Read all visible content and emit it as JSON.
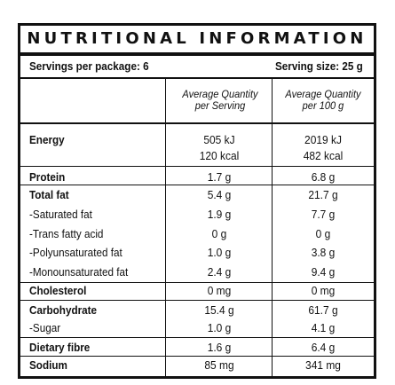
{
  "title": "NUTRITIONAL INFORMATION",
  "servings_per_package": "Servings per package: 6",
  "serving_size": "Serving size: 25 g",
  "col_headers": {
    "per_serving": [
      "Average Quantity",
      "per Serving"
    ],
    "per_100g": [
      "Average Quantity",
      "per 100 g"
    ]
  },
  "rows": [
    {
      "name": "Energy",
      "per_serving": "505 kJ",
      "per_100g": "2019 kJ"
    },
    {
      "name": "",
      "per_serving": "120 kcal",
      "per_100g": "482 kcal"
    },
    {
      "name": "Protein",
      "per_serving": "1.7 g",
      "per_100g": "6.8 g"
    },
    {
      "name": "Total fat",
      "per_serving": "5.4 g",
      "per_100g": "21.7 g"
    },
    {
      "name": "-Saturated fat",
      "per_serving": "1.9 g",
      "per_100g": "7.7 g"
    },
    {
      "name": "-Trans fatty acid",
      "per_serving": "0 g",
      "per_100g": "0 g"
    },
    {
      "name": "-Polyunsaturated fat",
      "per_serving": "1.0 g",
      "per_100g": "3.8 g"
    },
    {
      "name": "-Monounsaturated fat",
      "per_serving": "2.4 g",
      "per_100g": "9.4 g"
    },
    {
      "name": "Cholesterol",
      "per_serving": "0 mg",
      "per_100g": "0 mg"
    },
    {
      "name": "Carbohydrate",
      "per_serving": "15.4 g",
      "per_100g": "61.7 g"
    },
    {
      "name": "-Sugar",
      "per_serving": "1.0 g",
      "per_100g": "4.1 g"
    },
    {
      "name": "Dietary fibre",
      "per_serving": "1.6 g",
      "per_100g": "6.4 g"
    },
    {
      "name": "Sodium",
      "per_serving": "85 mg",
      "per_100g": "341 mg"
    }
  ]
}
